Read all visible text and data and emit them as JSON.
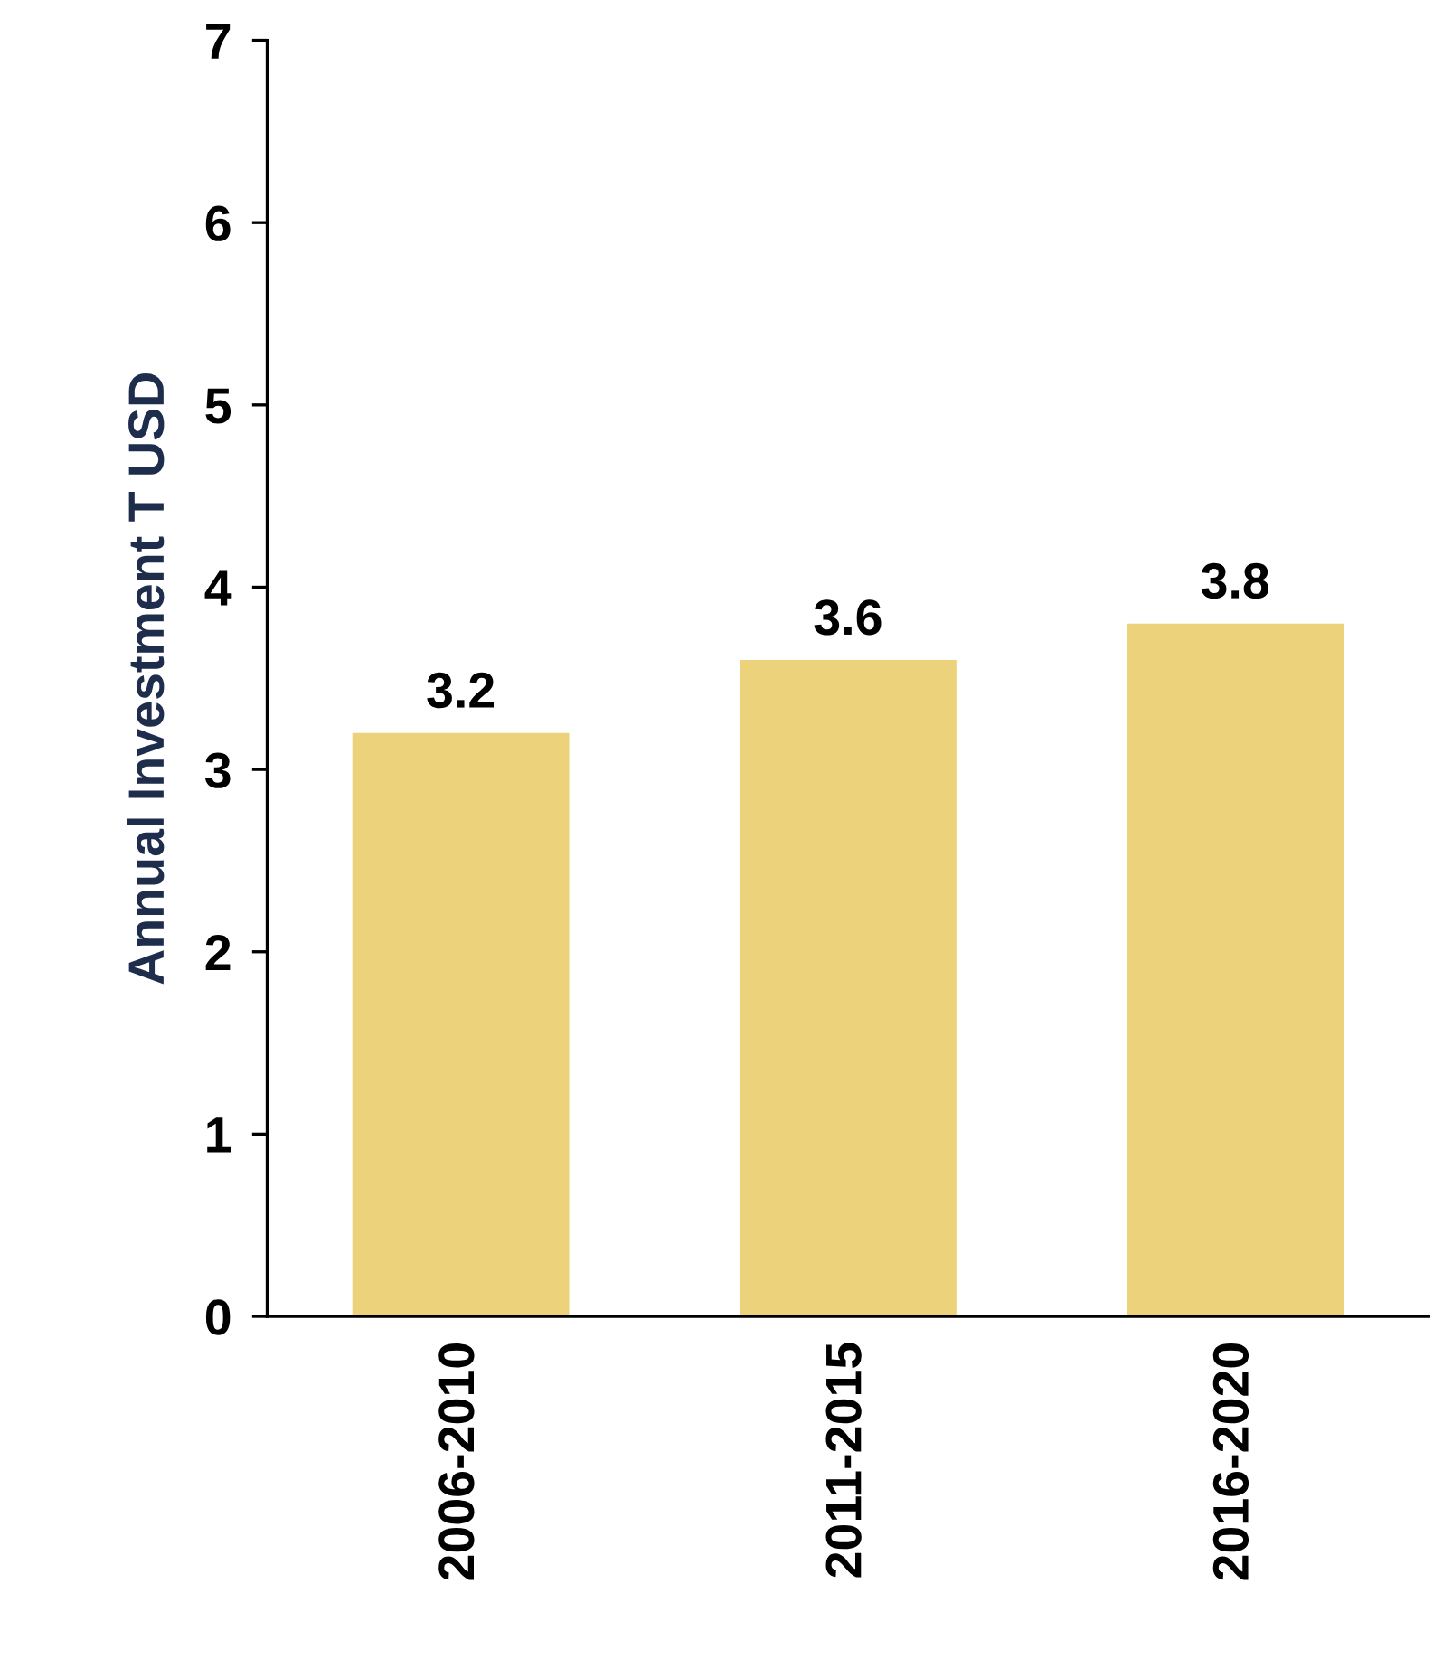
{
  "chart_data": {
    "type": "bar",
    "ylabel": "Annual Investment T USD",
    "categories": [
      "2006-2010",
      "2011-2015",
      "2016-2020"
    ],
    "values": [
      3.2,
      3.6,
      3.8
    ],
    "color": "#ecd27a",
    "ylim": [
      0,
      7
    ],
    "yticks": [
      0,
      1,
      2,
      3,
      4,
      5,
      6,
      7
    ],
    "grid": false,
    "data_labels": true
  }
}
